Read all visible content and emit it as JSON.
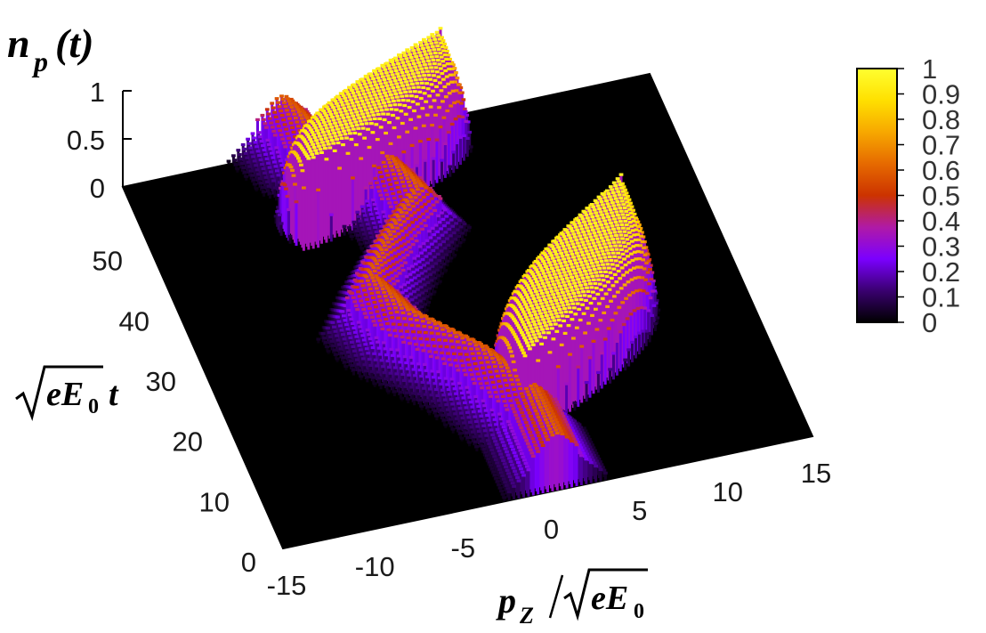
{
  "chart_data": {
    "type": "surface3d",
    "zlabel": {
      "main": "n",
      "sub": "p",
      "rest": "(t)"
    },
    "ylabel": {
      "sqrt": "eE",
      "sub": "0",
      "rest": "t"
    },
    "xlabel": {
      "main": "p",
      "sub": "Z",
      "sqrt": "eE",
      "sqrtsub": "0"
    },
    "xlim": [
      -15,
      15
    ],
    "ylim": [
      0,
      60
    ],
    "zlim": [
      0,
      1
    ],
    "xticks": [
      "-15",
      "-10",
      "-5",
      "0",
      "5",
      "10",
      "15"
    ],
    "xtick_values": [
      -15,
      -10,
      -5,
      0,
      5,
      10,
      15
    ],
    "yticks": [
      "0",
      "10",
      "20",
      "30",
      "40",
      "50"
    ],
    "ytick_values": [
      0,
      10,
      20,
      30,
      40,
      50
    ],
    "zticks": [
      "0",
      "0.5",
      "1"
    ],
    "ztick_values": [
      0,
      0.5,
      1
    ],
    "colorbar": {
      "range": [
        0,
        1
      ],
      "ticks": [
        "0",
        "0.1",
        "0.2",
        "0.3",
        "0.4",
        "0.5",
        "0.6",
        "0.7",
        "0.8",
        "0.9",
        "1"
      ],
      "colors": [
        "#000000",
        "#3a0070",
        "#7b00ff",
        "#b01aa6",
        "#cc3300",
        "#e66a00",
        "#f7a800",
        "#ffe000",
        "#ffff30"
      ]
    },
    "surface": {
      "description_free": true,
      "ridge_center_x_vs_t": [
        {
          "t": 0,
          "x": 0.5
        },
        {
          "t": 8,
          "x": 0.3
        },
        {
          "t": 16,
          "x": -1.5
        },
        {
          "t": 24,
          "x": -4.5
        },
        {
          "t": 30,
          "x": -5.5
        },
        {
          "t": 36,
          "x": -3.5
        },
        {
          "t": 42,
          "x": -1.0
        },
        {
          "t": 48,
          "x": -2.0
        },
        {
          "t": 54,
          "x": -5.0
        },
        {
          "t": 60,
          "x": -6.0
        }
      ],
      "plateau_regions": [
        {
          "t_range": [
            8,
            32
          ],
          "x_range": [
            0,
            9
          ],
          "value": 0.95
        },
        {
          "t_range": [
            44,
            60
          ],
          "x_range": [
            -7,
            3
          ],
          "value": 0.95
        }
      ],
      "ridge_wall_value": 0.55
    },
    "background": "#000000"
  }
}
